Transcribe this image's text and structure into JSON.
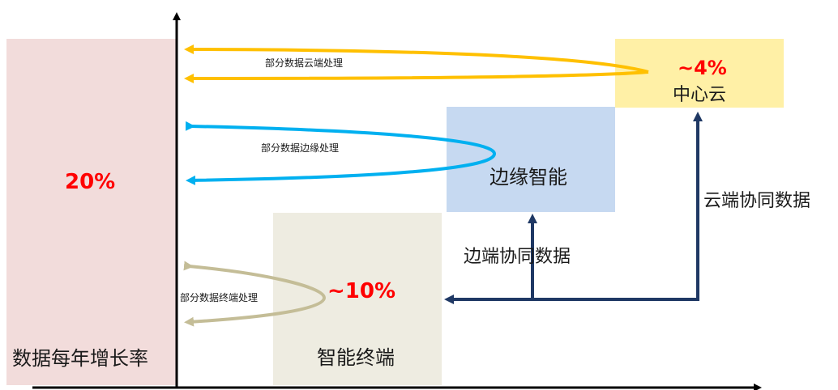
{
  "boxes": {
    "growth": {
      "label": "数据每年增长率",
      "value": "20%"
    },
    "terminal": {
      "label": "智能终端",
      "value": "~10%"
    },
    "edge": {
      "label": "边缘智能"
    },
    "cloud": {
      "label": "中心云",
      "value": "~4%"
    }
  },
  "flows": {
    "cloud_processing": "部分数据云端处理",
    "edge_processing": "部分数据边缘处理",
    "terminal_processing": "部分数据终端处理",
    "edge_terminal_sync": "边端协同数据",
    "cloud_terminal_sync": "云端协同数据"
  },
  "colors": {
    "cloud_arrow": "#ffc000",
    "edge_arrow": "#00b0f0",
    "terminal_arrow": "#c4bd97",
    "sync_arrow": "#1f3864",
    "percent_text": "#ff0000",
    "growth_fill": "#f2dcdb",
    "terminal_fill": "#eeece1",
    "edge_fill": "#c6d9f1",
    "cloud_fill": "#fff0a6"
  }
}
